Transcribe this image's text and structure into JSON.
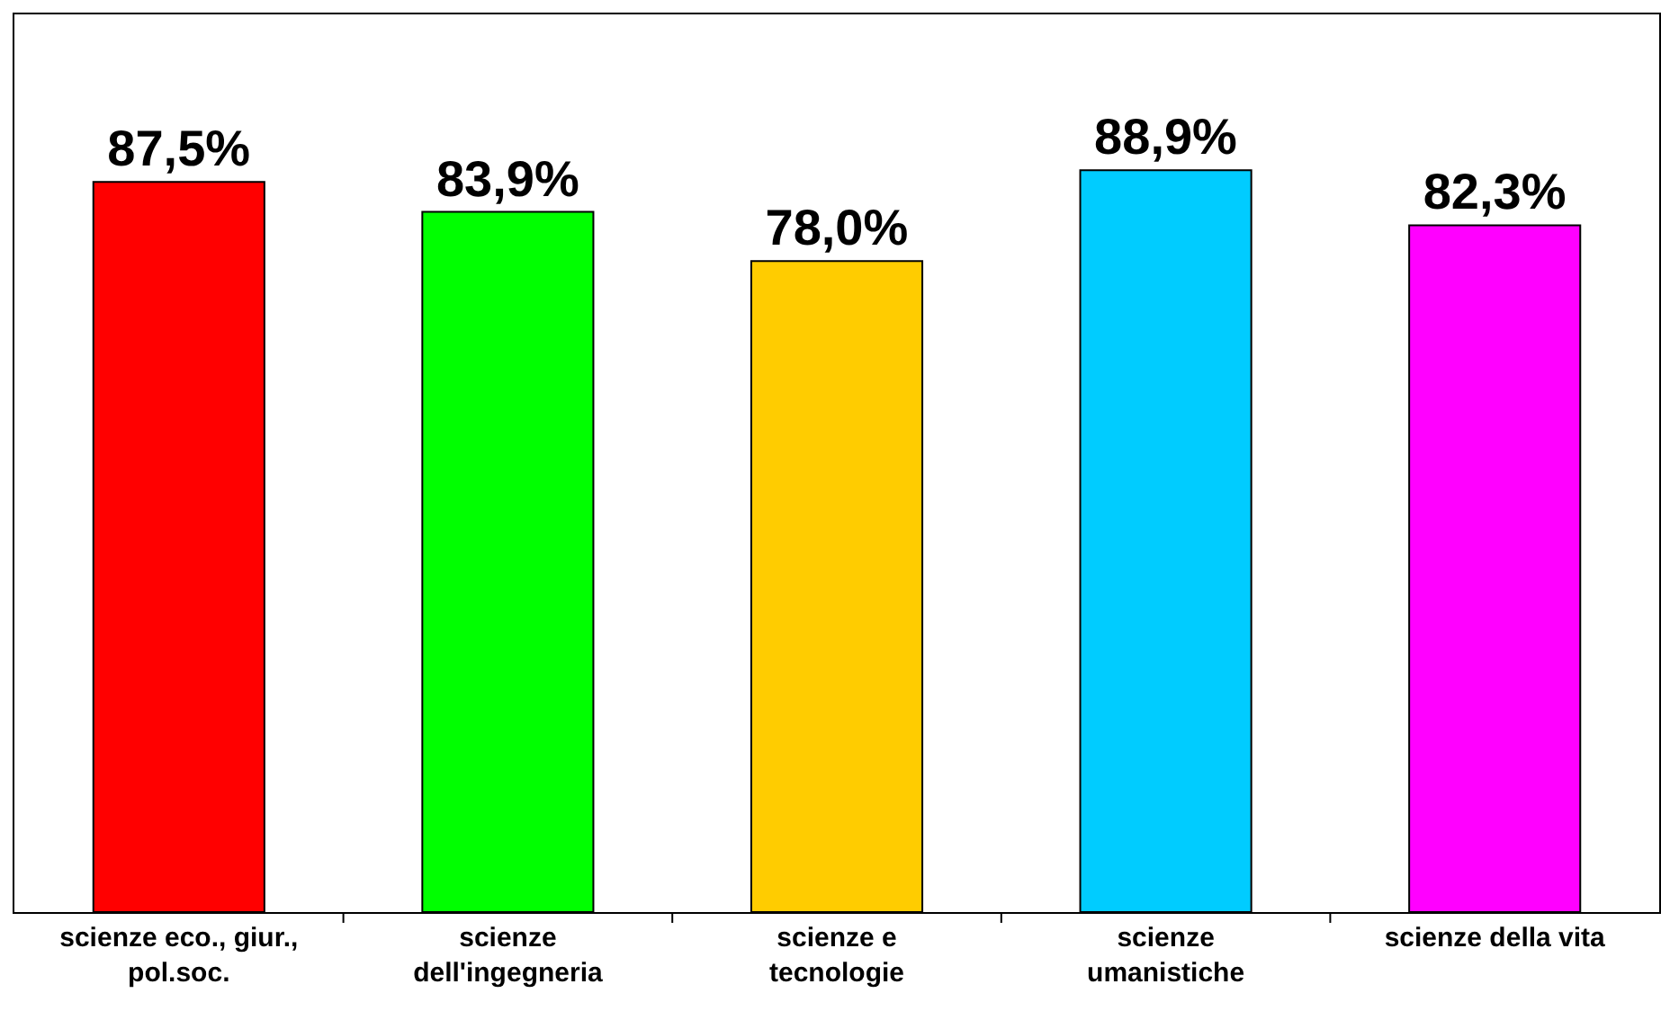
{
  "chart_data": {
    "type": "bar",
    "categories": [
      "scienze eco., giur.,\npol.soc.",
      "scienze\ndell'ingegneria",
      "scienze e\ntecnologie",
      "scienze\numanistiche",
      "scienze della vita"
    ],
    "values": [
      87.5,
      83.9,
      78.0,
      88.9,
      82.3
    ],
    "colors": [
      "#ff0000",
      "#00ff00",
      "#ffcc00",
      "#00ccff",
      "#ff00ff"
    ],
    "value_labels": [
      "87,5%",
      "83,9%",
      "78,0%",
      "88,9%",
      "82,3%"
    ],
    "grid": false
  }
}
